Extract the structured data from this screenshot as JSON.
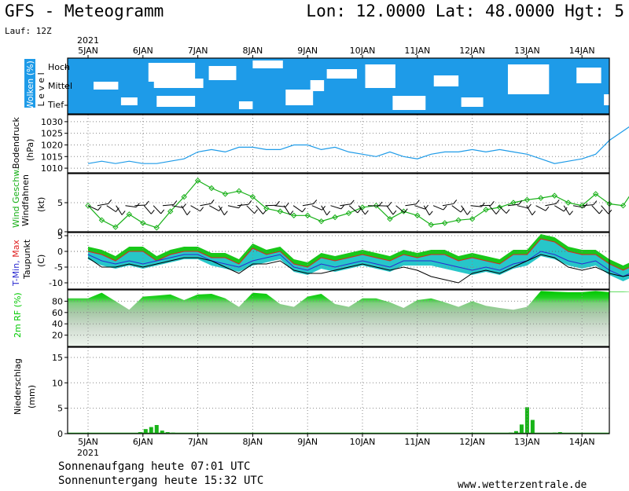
{
  "header": {
    "title_left": "GFS - Meteogramm",
    "title_right": "Lon: 12.0000 Lat: 48.0000 Hgt: 5",
    "lauf": "Lauf: 12Z"
  },
  "footer": {
    "sunrise": "Sonnenaufgang heute 07:01 UTC",
    "sunset": "Sonnenuntergang heute 15:32 UTC",
    "website": "www.wetterzentrale.de"
  },
  "colors": {
    "cloud": "#1e9be8",
    "pressure": "#1e9be8",
    "wind_speed": "#18b018",
    "tmin": "#2a2ad0",
    "tmax": "#e02020",
    "taupunkt": "#000000",
    "precip": "#18b418",
    "rh_dark": "#00c800",
    "grid": "#888888"
  },
  "chart_data": [
    {
      "panel": "clouds",
      "type": "heatmap",
      "ylabel": "Wolken (%)",
      "ylabel2": "L e v e l",
      "levels": [
        "Hoch",
        "Mittel",
        "Tief"
      ],
      "x": [
        "5JAN",
        "6JAN",
        "7JAN",
        "8JAN",
        "9JAN",
        "10JAN",
        "11JAN",
        "12JAN",
        "13JAN",
        "14JAN"
      ],
      "year_label": "2021"
    },
    {
      "panel": "pressure",
      "type": "line",
      "ylabel": "Bodendruck",
      "unit": "(hPa)",
      "yticks": [
        1010,
        1015,
        1020,
        1025,
        1030
      ],
      "ylim": [
        1008,
        1033
      ],
      "x_days": [
        0.0,
        0.25,
        0.5,
        0.75,
        1.0,
        1.25,
        1.5,
        1.75,
        2.0,
        2.25,
        2.5,
        2.75,
        3.0,
        3.25,
        3.5,
        3.75,
        4.0,
        4.25,
        4.5,
        4.75,
        5.0,
        5.25,
        5.5,
        5.75,
        6.0,
        6.25,
        6.5,
        6.75,
        7.0,
        7.25,
        7.5,
        7.75,
        8.0,
        8.25,
        8.5,
        8.75,
        9.0,
        9.25,
        9.5,
        9.75,
        10.0
      ],
      "values": [
        1012,
        1013,
        1012,
        1013,
        1012,
        1012,
        1013,
        1014,
        1017,
        1018,
        1017,
        1019,
        1019,
        1018,
        1018,
        1020,
        1020,
        1018,
        1019,
        1017,
        1016,
        1015,
        1017,
        1015,
        1014,
        1016,
        1017,
        1017,
        1018,
        1017,
        1018,
        1017,
        1016,
        1014,
        1012,
        1013,
        1014,
        1016,
        1022,
        1026,
        1030
      ]
    },
    {
      "panel": "wind",
      "type": "line",
      "ylabel": "Wind Geschw.",
      "ylabel2": "Windfahnen",
      "unit": "(kt)",
      "yticks": [
        0,
        5
      ],
      "ylim": [
        0,
        10
      ],
      "x_days": [
        0.0,
        0.25,
        0.5,
        0.75,
        1.0,
        1.25,
        1.5,
        1.75,
        2.0,
        2.25,
        2.5,
        2.75,
        3.0,
        3.25,
        3.5,
        3.75,
        4.0,
        4.25,
        4.5,
        4.75,
        5.0,
        5.25,
        5.5,
        5.75,
        6.0,
        6.25,
        6.5,
        6.75,
        7.0,
        7.25,
        7.5,
        7.75,
        8.0,
        8.25,
        8.5,
        8.75,
        9.0,
        9.25,
        9.5,
        9.75,
        10.0
      ],
      "values": [
        4.5,
        2.0,
        0.8,
        3.0,
        1.5,
        0.7,
        3.5,
        6.0,
        8.8,
        7.5,
        6.5,
        7.0,
        6.0,
        4.0,
        3.5,
        2.8,
        2.8,
        1.8,
        2.5,
        3.2,
        4.2,
        4.5,
        2.2,
        3.5,
        2.8,
        1.2,
        1.5,
        2.0,
        2.2,
        3.8,
        4.2,
        5.0,
        5.5,
        5.8,
        6.2,
        5.0,
        4.5,
        6.5,
        4.8,
        4.5,
        8.0
      ]
    },
    {
      "panel": "temperature",
      "type": "area",
      "ylabel": "T-Min, Max",
      "ylabel2": "Taupunkt",
      "unit": "(C)",
      "yticks": [
        -10,
        -5,
        0,
        5
      ],
      "ylim": [
        -12,
        6
      ],
      "x_days": [
        0.0,
        0.25,
        0.5,
        0.75,
        1.0,
        1.25,
        1.5,
        1.75,
        2.0,
        2.25,
        2.5,
        2.75,
        3.0,
        3.25,
        3.5,
        3.75,
        4.0,
        4.25,
        4.5,
        4.75,
        5.0,
        5.25,
        5.5,
        5.75,
        6.0,
        6.25,
        6.5,
        6.75,
        7.0,
        7.25,
        7.5,
        7.75,
        8.0,
        8.25,
        8.5,
        8.75,
        9.0,
        9.25,
        9.5,
        9.75,
        10.0
      ],
      "series": [
        {
          "name": "T-Min",
          "values": [
            -1,
            -3,
            -4,
            -3,
            -4,
            -3,
            -2,
            -1,
            -1,
            -3,
            -4,
            -5,
            -3,
            -2,
            -1,
            -5,
            -6,
            -4,
            -5,
            -4,
            -3,
            -4,
            -5,
            -3,
            -3,
            -3,
            -4,
            -5,
            -6,
            -5,
            -6,
            -4,
            -3,
            0,
            -1,
            -3,
            -4,
            -3,
            -6,
            -8,
            -6
          ]
        },
        {
          "name": "T-Max",
          "values": [
            0,
            -1,
            -3,
            0,
            0,
            -3,
            -1,
            0,
            0,
            -2,
            -2,
            -4,
            1,
            -1,
            0,
            -4,
            -5,
            -2,
            -3,
            -2,
            -1,
            -2,
            -3,
            -1,
            -2,
            -1,
            -1,
            -3,
            -2,
            -3,
            -4,
            -1,
            -1,
            4,
            3,
            0,
            -1,
            -1,
            -4,
            -6,
            -4
          ]
        },
        {
          "name": "Taupunkt",
          "values": [
            -2,
            -5,
            -5,
            -4,
            -5,
            -4,
            -3,
            -2,
            -2,
            -3,
            -5,
            -7,
            -4,
            -4,
            -3,
            -6,
            -7,
            -7,
            -6,
            -5,
            -4,
            -5,
            -6,
            -5,
            -6,
            -8,
            -9,
            -10,
            -7,
            -6,
            -7,
            -5,
            -3,
            -1,
            -2,
            -5,
            -6,
            -5,
            -7,
            -8,
            -7
          ]
        }
      ]
    },
    {
      "panel": "rh",
      "type": "area",
      "ylabel": "2m RF (%)",
      "yticks": [
        20,
        40,
        60,
        80
      ],
      "ylim": [
        0,
        100
      ],
      "x_days": [
        0.0,
        0.25,
        0.5,
        0.75,
        1.0,
        1.25,
        1.5,
        1.75,
        2.0,
        2.25,
        2.5,
        2.75,
        3.0,
        3.25,
        3.5,
        3.75,
        4.0,
        4.25,
        4.5,
        4.75,
        5.0,
        5.25,
        5.5,
        5.75,
        6.0,
        6.25,
        6.5,
        6.75,
        7.0,
        7.25,
        7.5,
        7.75,
        8.0,
        8.25,
        8.5,
        8.75,
        9.0,
        9.25,
        9.5,
        9.75,
        10.0
      ],
      "values": [
        85,
        95,
        80,
        65,
        88,
        90,
        92,
        82,
        92,
        93,
        85,
        70,
        95,
        93,
        75,
        70,
        88,
        93,
        75,
        70,
        85,
        85,
        78,
        68,
        82,
        85,
        78,
        70,
        80,
        72,
        68,
        65,
        70,
        98,
        97,
        96,
        96,
        98,
        96,
        96,
        97
      ]
    },
    {
      "panel": "precip",
      "type": "bar",
      "ylabel": "Niederschlag",
      "unit": "(mm)",
      "yticks": [
        0,
        5,
        10,
        15
      ],
      "ylim": [
        0,
        17
      ],
      "x_days": [
        0.95,
        1.05,
        1.15,
        1.25,
        1.35,
        1.45,
        1.55,
        1.65,
        7.7,
        7.8,
        7.9,
        8.0,
        8.1,
        8.5,
        8.6,
        8.7
      ],
      "values": [
        0.3,
        0.9,
        1.3,
        1.7,
        0.6,
        0.3,
        0.2,
        0.1,
        0.2,
        0.5,
        1.8,
        5.2,
        2.7,
        0.2,
        0.3,
        0.1
      ]
    }
  ]
}
